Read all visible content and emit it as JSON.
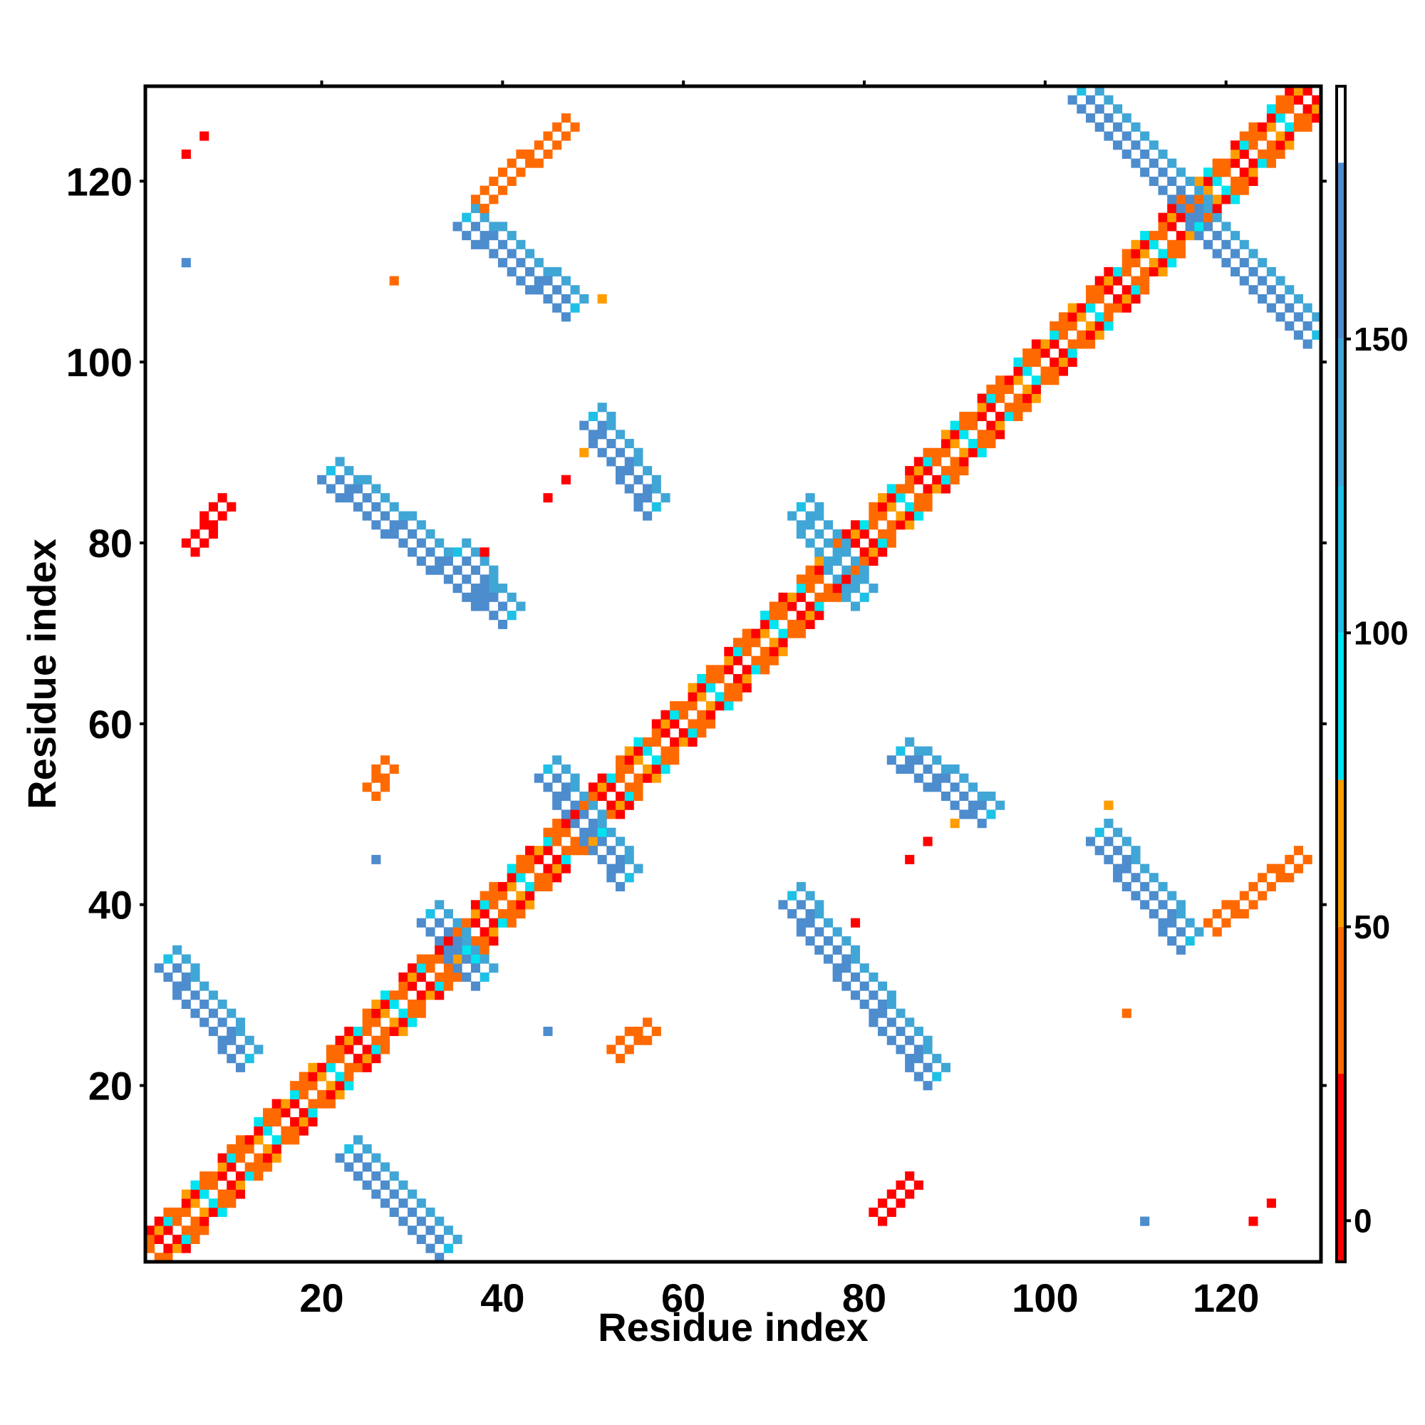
{
  "chart_data": {
    "type": "heatmap",
    "title": "",
    "xlabel": "Residue index",
    "ylabel": "Residue index",
    "xlim": [
      0.5,
      130.5
    ],
    "ylim": [
      0.5,
      130.5
    ],
    "x_ticks": [
      20,
      40,
      60,
      80,
      100,
      120
    ],
    "y_ticks": [
      20,
      40,
      60,
      80,
      100,
      120
    ],
    "colorbar": {
      "range": [
        -7,
        193
      ],
      "ticks": [
        0,
        50,
        100,
        150
      ],
      "bands": [
        {
          "from": -7,
          "to": 25,
          "color": "#ff0000"
        },
        {
          "from": 25,
          "to": 50,
          "color": "#ff6a00"
        },
        {
          "from": 50,
          "to": 75,
          "color": "#ff9d00"
        },
        {
          "from": 75,
          "to": 100,
          "color": "#00e3f0"
        },
        {
          "from": 100,
          "to": 125,
          "color": "#1ec0e6"
        },
        {
          "from": 125,
          "to": 150,
          "color": "#40a6d6"
        },
        {
          "from": 150,
          "to": 180,
          "color": "#4d8ccd"
        },
        {
          "from": 180,
          "to": 193,
          "color": "#ffffff"
        }
      ]
    },
    "features": [
      {
        "kind": "diagonal-band",
        "from": 1,
        "to": 130,
        "value": 40
      },
      {
        "kind": "antiparallel-strand",
        "i_range": [
          3,
          12
        ],
        "j_range": [
          34,
          23
        ],
        "value": 155
      },
      {
        "kind": "antiparallel-strand",
        "i_range": [
          23,
          34
        ],
        "j_range": [
          13,
          2
        ],
        "value": 155
      },
      {
        "kind": "antiparallel-strand",
        "i_range": [
          72,
          88
        ],
        "j_range": [
          41,
          21
        ],
        "value": 155
      },
      {
        "kind": "antiparallel-strand",
        "i_range": [
          21,
          41
        ],
        "j_range": [
          88,
          72
        ],
        "value": 155
      },
      {
        "kind": "antiparallel-strand",
        "i_range": [
          84,
          94
        ],
        "j_range": [
          57,
          50
        ],
        "value": 150
      },
      {
        "kind": "antiparallel-strand",
        "i_range": [
          50,
          57
        ],
        "j_range": [
          94,
          84
        ],
        "value": 150
      },
      {
        "kind": "antiparallel-strand",
        "i_range": [
          36,
          48
        ],
        "j_range": [
          116,
          106
        ],
        "value": 155
      },
      {
        "kind": "antiparallel-strand",
        "i_range": [
          106,
          116
        ],
        "j_range": [
          48,
          36
        ],
        "value": 155
      },
      {
        "kind": "antiparallel-strand",
        "i_range": [
          104,
          130
        ],
        "j_range": [
          130,
          103
        ],
        "value": 155
      },
      {
        "kind": "antiparallel-strand",
        "i_range": [
          35,
          41
        ],
        "j_range": [
          79,
          72
        ],
        "value": 150
      },
      {
        "kind": "antiparallel-strand",
        "i_range": [
          32,
          38
        ],
        "j_range": [
          39,
          32
        ],
        "value": 150
      },
      {
        "kind": "antiparallel-strand",
        "i_range": [
          45,
          54
        ],
        "j_range": [
          55,
          43
        ],
        "value": 150
      },
      {
        "kind": "antiparallel-strand",
        "i_range": [
          73,
          80
        ],
        "j_range": [
          84,
          74
        ],
        "value": 140
      },
      {
        "kind": "parallel-strand",
        "i_range": [
          118,
          128
        ],
        "j_range": [
          38,
          46
        ],
        "value": 40
      },
      {
        "kind": "parallel-strand",
        "i_range": [
          37,
          47
        ],
        "j_range": [
          118,
          127
        ],
        "value": 40
      },
      {
        "kind": "parallel-strand",
        "i_range": [
          81,
          85
        ],
        "j_range": [
          6,
          10
        ],
        "value": 20
      },
      {
        "kind": "parallel-strand",
        "i_range": [
          5,
          9
        ],
        "j_range": [
          80,
          85
        ],
        "value": 20
      },
      {
        "kind": "parallel-strand",
        "i_range": [
          52,
          56
        ],
        "j_range": [
          24,
          27
        ],
        "value": 40
      },
      {
        "kind": "parallel-strand",
        "i_range": [
          25,
          27
        ],
        "j_range": [
          53,
          56
        ],
        "value": 40
      }
    ],
    "isolated_contacts": [
      {
        "i": 5,
        "j": 123,
        "value": 10
      },
      {
        "i": 7,
        "j": 125,
        "value": 10
      },
      {
        "i": 5,
        "j": 111,
        "value": 160
      },
      {
        "i": 28,
        "j": 109,
        "value": 40
      },
      {
        "i": 51,
        "j": 107,
        "value": 60
      },
      {
        "i": 49,
        "j": 90,
        "value": 60
      },
      {
        "i": 45,
        "j": 85,
        "value": 10
      },
      {
        "i": 47,
        "j": 87,
        "value": 10
      },
      {
        "i": 38,
        "j": 79,
        "value": 10
      },
      {
        "i": 26,
        "j": 45,
        "value": 160
      },
      {
        "i": 45,
        "j": 26,
        "value": 160
      },
      {
        "i": 79,
        "j": 38,
        "value": 10
      },
      {
        "i": 85,
        "j": 45,
        "value": 10
      },
      {
        "i": 87,
        "j": 47,
        "value": 10
      },
      {
        "i": 90,
        "j": 49,
        "value": 60
      },
      {
        "i": 107,
        "j": 51,
        "value": 60
      },
      {
        "i": 109,
        "j": 28,
        "value": 40
      },
      {
        "i": 111,
        "j": 5,
        "value": 160
      },
      {
        "i": 123,
        "j": 5,
        "value": 10
      },
      {
        "i": 125,
        "j": 7,
        "value": 10
      }
    ]
  }
}
